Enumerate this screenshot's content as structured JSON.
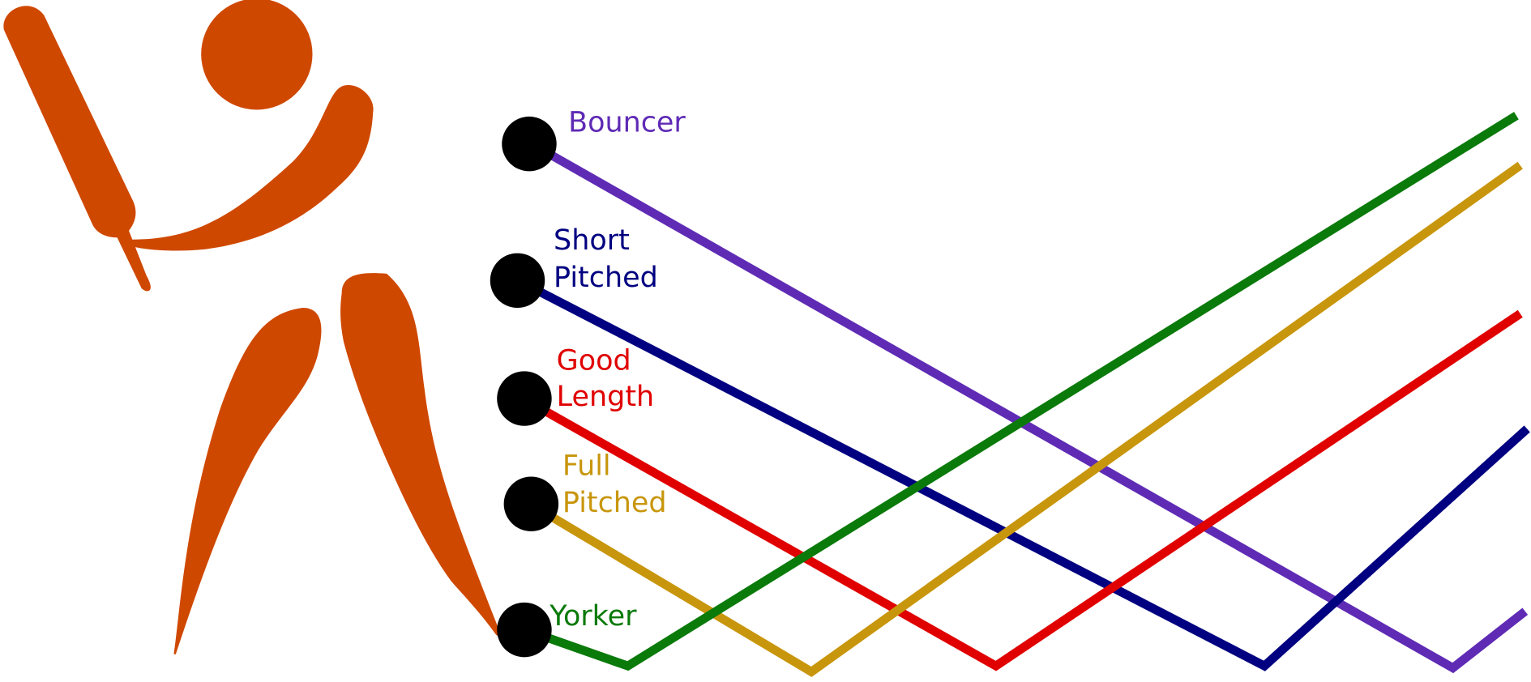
{
  "labels": [
    {
      "lines": [
        "Bouncer"
      ]
    },
    {
      "lines": [
        "Short",
        "Pitched"
      ]
    },
    {
      "lines": [
        "Good",
        "Length"
      ]
    },
    {
      "lines": [
        "Full",
        "Pitched"
      ]
    },
    {
      "lines": [
        "Yorker"
      ]
    }
  ]
}
